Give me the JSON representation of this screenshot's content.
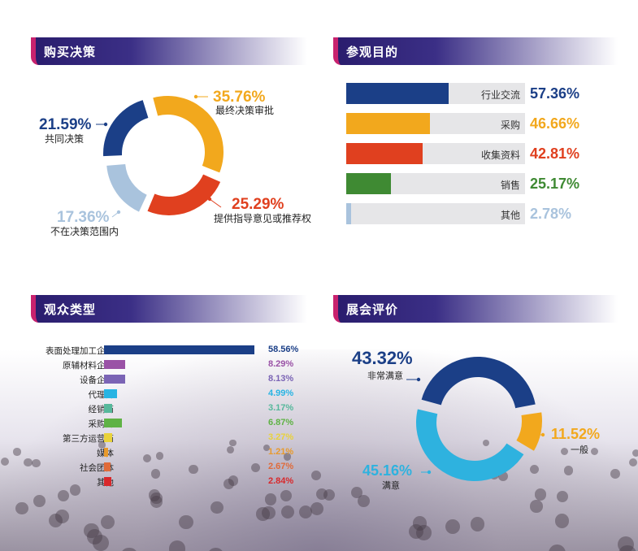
{
  "sections": {
    "purchase": "购买决策",
    "purpose": "参观目的",
    "audience": "观众类型",
    "rating": "展会评价"
  },
  "chart_data": [
    {
      "type": "pie",
      "title": "购买决策",
      "slices": [
        {
          "label": "最终决策审批",
          "value": 35.76,
          "display": "35.76%",
          "color": "#f2a81d"
        },
        {
          "label": "提供指导意见或推荐权",
          "value": 25.29,
          "display": "25.29%",
          "color": "#e0401f"
        },
        {
          "label": "不在决策范围内",
          "value": 17.36,
          "display": "17.36%",
          "color": "#a9c3dd"
        },
        {
          "label": "共同决策",
          "value": 21.59,
          "display": "21.59%",
          "color": "#1b3f87"
        }
      ]
    },
    {
      "type": "bar",
      "title": "参观目的",
      "orientation": "horizontal",
      "categories": [
        "行业交流",
        "采购",
        "收集资料",
        "销售",
        "其他"
      ],
      "values": [
        57.36,
        46.66,
        42.81,
        25.17,
        2.78
      ],
      "display": [
        "57.36%",
        "46.66%",
        "42.81%",
        "25.17%",
        "2.78%"
      ],
      "colors": [
        "#1b3f87",
        "#f2a81d",
        "#e0401f",
        "#3f8a33",
        "#a9c3dd"
      ],
      "xlim": [
        0,
        100
      ]
    },
    {
      "type": "bar",
      "title": "观众类型",
      "orientation": "horizontal",
      "categories": [
        "表面处理加工企业",
        "原辅材料企业",
        "设备企业",
        "代理商",
        "经销商",
        "采购商",
        "第三方运营商",
        "媒体",
        "社会团体",
        "其他"
      ],
      "values": [
        58.56,
        8.29,
        8.13,
        4.99,
        3.17,
        6.87,
        3.27,
        1.21,
        2.67,
        2.84
      ],
      "display": [
        "58.56%",
        "8.29%",
        "8.13%",
        "4.99%",
        "3.17%",
        "6.87%",
        "3.27%",
        "1.21%",
        "2.67%",
        "2.84%"
      ],
      "colors": [
        "#1b3f87",
        "#9a52a6",
        "#7b64b5",
        "#28b4e3",
        "#56b89b",
        "#5fb245",
        "#e9d23a",
        "#e89a2c",
        "#e06b3a",
        "#d8282b"
      ],
      "xlim": [
        0,
        60
      ]
    },
    {
      "type": "pie",
      "title": "展会评价",
      "slices": [
        {
          "label": "非常满意",
          "value": 43.32,
          "display": "43.32%",
          "color": "#1b3f87"
        },
        {
          "label": "一般",
          "value": 11.52,
          "display": "11.52%",
          "color": "#f2a81d"
        },
        {
          "label": "满意",
          "value": 45.16,
          "display": "45.16%",
          "color": "#2eb2df"
        }
      ]
    }
  ]
}
